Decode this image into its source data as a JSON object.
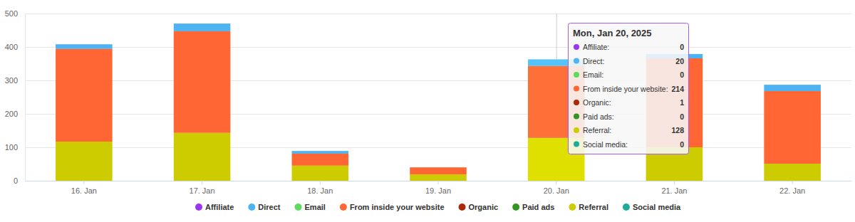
{
  "chart_data": {
    "type": "bar",
    "stacked": true,
    "grid": true,
    "legend": "bottom",
    "categories": [
      "16. Jan",
      "17. Jan",
      "18. Jan",
      "19. Jan",
      "20. Jan",
      "21. Jan",
      "22. Jan"
    ],
    "ylim": [
      0,
      500
    ],
    "yticks": [
      0,
      100,
      200,
      300,
      400,
      500
    ],
    "series": [
      {
        "name": "Affiliate",
        "color": "#9b35f0",
        "values": [
          0,
          0,
          0,
          0,
          0,
          0,
          0
        ]
      },
      {
        "name": "Direct",
        "color": "#4db3f2",
        "values": [
          14,
          23,
          8,
          0,
          20,
          13,
          19
        ]
      },
      {
        "name": "Email",
        "color": "#5cdb5c",
        "values": [
          0,
          0,
          0,
          0,
          0,
          0,
          0
        ]
      },
      {
        "name": "From inside your website",
        "color": "#ff6633",
        "values": [
          277,
          304,
          36,
          21,
          214,
          266,
          217
        ]
      },
      {
        "name": "Organic",
        "color": "#aa2a08",
        "values": [
          0,
          0,
          0,
          0,
          1,
          0,
          0
        ]
      },
      {
        "name": "Paid ads",
        "color": "#33951f",
        "values": [
          0,
          0,
          0,
          0,
          0,
          0,
          0
        ]
      },
      {
        "name": "Referral",
        "color": "#cccc00",
        "values": [
          117,
          143,
          45,
          19,
          128,
          100,
          51
        ]
      },
      {
        "name": "Social media",
        "color": "#1fa99a",
        "values": [
          0,
          0,
          0,
          0,
          0,
          0,
          0
        ]
      }
    ],
    "tooltip": {
      "title": "Mon, Jan 20, 2025",
      "category": "20. Jan",
      "labels": [
        "Affiliate:",
        "Direct:",
        "Email:",
        "From inside your website:",
        "Organic:",
        "Paid ads:",
        "Referral:",
        "Social media:"
      ]
    }
  }
}
